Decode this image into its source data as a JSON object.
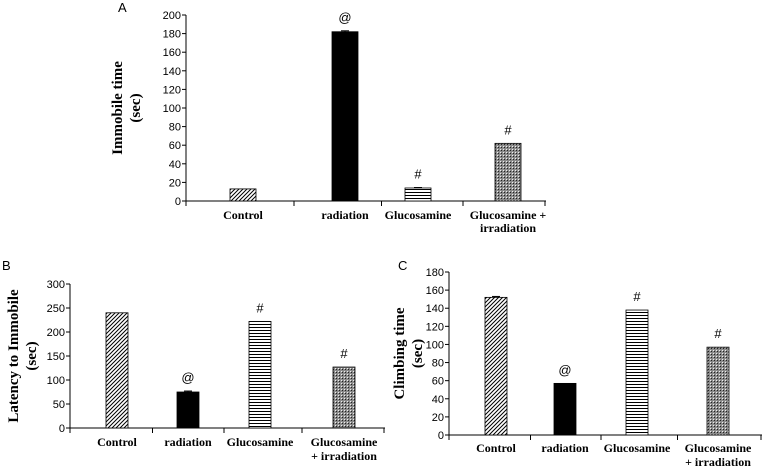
{
  "chart_data": [
    {
      "panel": "A",
      "type": "bar",
      "categories": [
        "Control",
        "radiation",
        "Glucosamine",
        "Glucosamine +\nirradiation"
      ],
      "values": [
        13,
        182,
        14,
        62
      ],
      "errors": [
        0,
        1,
        0.5,
        0
      ],
      "annotations": [
        "",
        "@",
        "#",
        "#"
      ],
      "ylabel_lines": [
        "Immobile  time",
        "(sec)"
      ],
      "ylim": [
        0,
        200
      ],
      "yticks": [
        0,
        20,
        40,
        60,
        80,
        100,
        120,
        140,
        160,
        180,
        200
      ],
      "patterns": [
        "diag",
        "solid",
        "hlines",
        "dots"
      ]
    },
    {
      "panel": "B",
      "type": "bar",
      "categories": [
        "Control",
        "radiation",
        "Glucosamine",
        "Glucosamine\n+ irradiation"
      ],
      "values": [
        240,
        75,
        222,
        127
      ],
      "errors": [
        0,
        2,
        0,
        0
      ],
      "annotations": [
        "",
        "@",
        "#",
        "#"
      ],
      "ylabel_lines": [
        "Latency to Immobile",
        "(sec)"
      ],
      "ylim": [
        0,
        300
      ],
      "yticks": [
        0,
        50,
        100,
        150,
        200,
        250,
        300
      ],
      "patterns": [
        "diag",
        "solid",
        "hlines",
        "dots"
      ]
    },
    {
      "panel": "C",
      "type": "bar",
      "categories": [
        "Control",
        "radiation",
        "Glucosamine",
        "Glucosamine\n+ irradiation"
      ],
      "values": [
        152,
        57,
        138,
        97
      ],
      "errors": [
        1,
        0,
        0,
        0
      ],
      "annotations": [
        "",
        "@",
        "#",
        "#"
      ],
      "ylabel_lines": [
        "Climbing  time",
        "(sec)"
      ],
      "ylim": [
        0,
        180
      ],
      "yticks": [
        0,
        20,
        40,
        60,
        80,
        100,
        120,
        140,
        160,
        180
      ],
      "patterns": [
        "diag",
        "solid",
        "hlines",
        "dots"
      ]
    }
  ]
}
